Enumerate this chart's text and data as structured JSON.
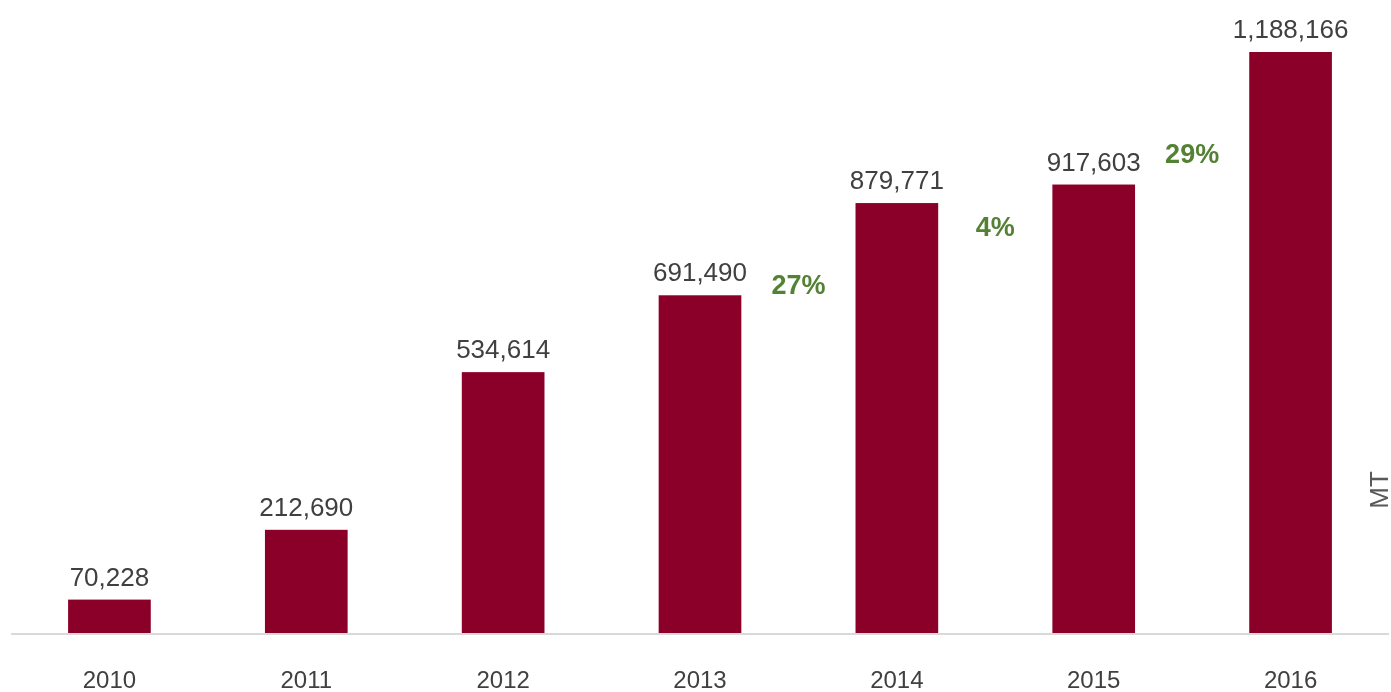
{
  "chart_data": {
    "type": "bar",
    "ylabel": "MT",
    "categories": [
      "2010",
      "2011",
      "2012",
      "2013",
      "2014",
      "2015",
      "2016"
    ],
    "values": [
      70228,
      212690,
      534614,
      691490,
      879771,
      917603,
      1188166
    ],
    "value_labels": [
      "70,228",
      "212,690",
      "534,614",
      "691,490",
      "879,771",
      "917,603",
      "1,188,166"
    ],
    "color": "#8b0029",
    "annotations": [
      "27%",
      "4%",
      "29%"
    ]
  }
}
